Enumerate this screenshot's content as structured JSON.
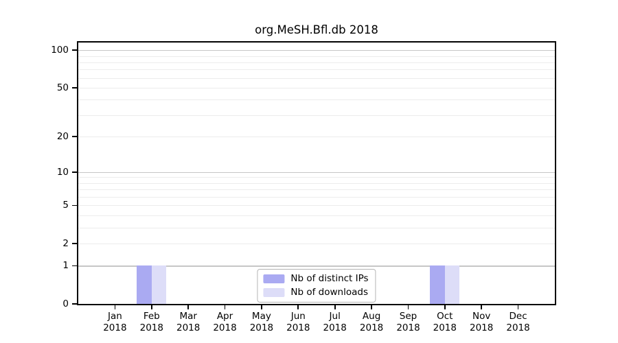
{
  "title": "org.MeSH.Bfl.db 2018",
  "chart_data": {
    "type": "bar",
    "title": "org.MeSH.Bfl.db 2018",
    "categories": [
      "Jan",
      "Feb",
      "Mar",
      "Apr",
      "May",
      "Jun",
      "Jul",
      "Aug",
      "Sep",
      "Oct",
      "Nov",
      "Dec"
    ],
    "category_subline": "2018",
    "series": [
      {
        "name": "Nb of distinct IPs",
        "color": "#aaaaf2",
        "values": [
          0,
          1,
          0,
          0,
          0,
          0,
          0,
          0,
          0,
          1,
          0,
          0
        ]
      },
      {
        "name": "Nb of downloads",
        "color": "#ddddf8",
        "values": [
          0,
          1,
          0,
          0,
          0,
          0,
          0,
          0,
          0,
          1,
          0,
          0
        ]
      }
    ],
    "xlabel": "",
    "ylabel": "",
    "yscale": "log1p",
    "ylim": [
      0,
      115
    ],
    "yticks": [
      0,
      1,
      2,
      5,
      10,
      20,
      50,
      100
    ],
    "grid": true,
    "grid_major_ticks": [
      1,
      10,
      100
    ],
    "legend_position": "lower center"
  },
  "colors": {
    "axis": "#000000",
    "grid_minor": "#ececec",
    "grid_major": "#c6c6c6",
    "legend_border": "#b5b5b5",
    "background": "#ffffff"
  }
}
